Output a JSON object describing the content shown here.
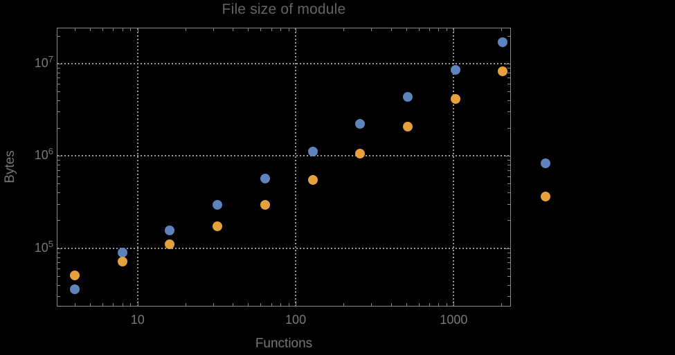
{
  "chart_data": {
    "type": "scatter",
    "title": "File size of module",
    "xlabel": "Functions",
    "ylabel": "Bytes",
    "x_scale": "log",
    "y_scale": "log",
    "grid": "dotted",
    "legend": "none",
    "xlim": [
      3.08,
      2300
    ],
    "ylim": [
      23300,
      24400000
    ],
    "x_gridlines": [
      10,
      100,
      1000
    ],
    "y_gridlines": [
      100000,
      1000000,
      10000000
    ],
    "x_ticks": [
      {
        "value": 10,
        "label": "10"
      },
      {
        "value": 100,
        "label": "100"
      },
      {
        "value": 1000,
        "label": "1000"
      }
    ],
    "y_ticks": [
      {
        "value": 100000,
        "base": "10",
        "exponent": "5"
      },
      {
        "value": 1000000,
        "base": "10",
        "exponent": "6"
      },
      {
        "value": 10000000,
        "base": "10",
        "exponent": "7"
      }
    ],
    "minor_tick_decades_x": [
      0,
      1,
      2,
      3
    ],
    "minor_tick_decades_y": [
      4,
      5,
      6,
      7
    ],
    "series": [
      {
        "name": "blue",
        "color": "#5E84BE",
        "points": [
          [
            4,
            36000
          ],
          [
            8,
            89000
          ],
          [
            16,
            155000
          ],
          [
            32,
            294000
          ],
          [
            64,
            568000
          ],
          [
            128,
            1110000
          ],
          [
            256,
            2220000
          ],
          [
            512,
            4350000
          ],
          [
            1024,
            8500000
          ],
          [
            2048,
            17000000
          ],
          [
            3820,
            835000
          ]
        ]
      },
      {
        "name": "orange",
        "color": "#E6A13C",
        "points": [
          [
            4,
            50400
          ],
          [
            8,
            71500
          ],
          [
            16,
            110000
          ],
          [
            32,
            172000
          ],
          [
            64,
            294000
          ],
          [
            128,
            548000
          ],
          [
            256,
            1060000
          ],
          [
            512,
            2070000
          ],
          [
            1024,
            4130000
          ],
          [
            2048,
            8230000
          ],
          [
            3820,
            364000
          ]
        ]
      }
    ],
    "colors": {
      "background": "#000000",
      "frame": "#898989",
      "grid": "#9a9a9a",
      "title_text": "#646464",
      "label_text": "#767676",
      "tick_label_text": "#787878"
    }
  }
}
